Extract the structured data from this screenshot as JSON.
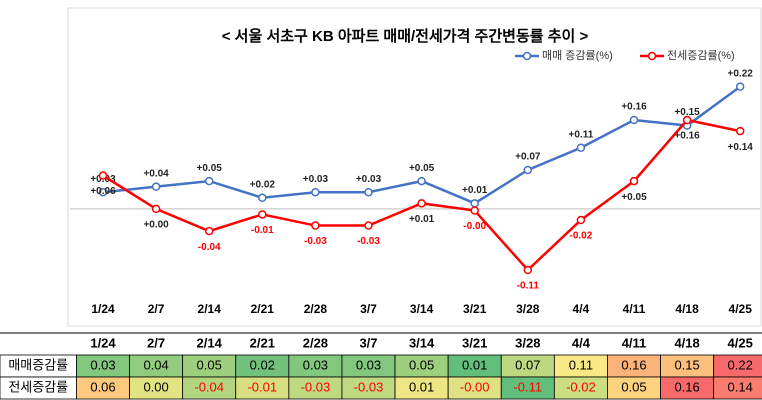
{
  "chart_data": {
    "type": "line",
    "title": "< 서울 서초구 KB 아파트 매매/전세가격 주간변동률 추이 >",
    "categories": [
      "1/24",
      "2/7",
      "2/14",
      "2/21",
      "2/28",
      "3/7",
      "3/14",
      "3/21",
      "3/28",
      "4/4",
      "4/11",
      "4/18",
      "4/25"
    ],
    "ylim": [
      -0.2,
      0.25
    ],
    "legend": "top-right",
    "series": [
      {
        "name": "매매 증감률(%)",
        "row_label": "매매증감률",
        "color": "#4472c4",
        "values": [
          0.03,
          0.04,
          0.05,
          0.02,
          0.03,
          0.03,
          0.05,
          0.01,
          0.07,
          0.11,
          0.16,
          0.15,
          0.22
        ],
        "value_labels": [
          "+0.03",
          "+0.04",
          "+0.05",
          "+0.02",
          "+0.03",
          "+0.03",
          "+0.05",
          "+0.01",
          "+0.07",
          "+0.11",
          "+0.16",
          "+0.15",
          "+0.22"
        ],
        "table_labels": [
          "0.03",
          "0.04",
          "0.05",
          "0.02",
          "0.03",
          "0.03",
          "0.05",
          "0.01",
          "0.07",
          "0.11",
          "0.16",
          "0.15",
          "0.22"
        ]
      },
      {
        "name": "전세증감률(%)",
        "row_label": "전세증감률",
        "color": "#ff0000",
        "values": [
          0.06,
          0.0,
          -0.04,
          -0.01,
          -0.03,
          -0.03,
          0.01,
          -0.003,
          -0.11,
          -0.02,
          0.05,
          0.16,
          0.14
        ],
        "value_labels": [
          "+0.06",
          "+0.00",
          "-0.04",
          "-0.01",
          "-0.03",
          "-0.03",
          "+0.01",
          "-0.00",
          "-0.11",
          "-0.02",
          "+0.05",
          "+0.16",
          "+0.14"
        ],
        "table_labels": [
          "0.06",
          "0.00",
          "-0.04",
          "-0.01",
          "-0.03",
          "-0.03",
          "0.01",
          "-0.00",
          "-0.11",
          "-0.02",
          "0.05",
          "0.16",
          "0.14"
        ]
      }
    ],
    "table_color_scale": [
      "#63be7b",
      "#ffeb84",
      "#f8696b"
    ]
  }
}
